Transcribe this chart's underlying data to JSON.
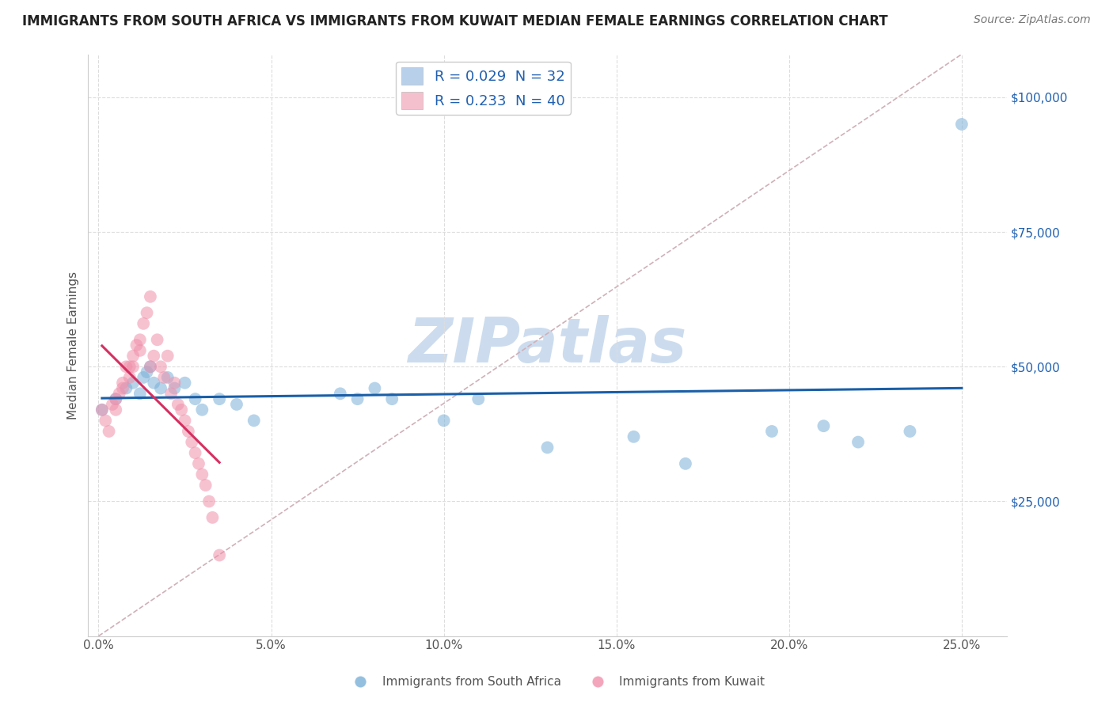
{
  "title": "IMMIGRANTS FROM SOUTH AFRICA VS IMMIGRANTS FROM KUWAIT MEDIAN FEMALE EARNINGS CORRELATION CHART",
  "source": "Source: ZipAtlas.com",
  "ylabel": "Median Female Earnings",
  "xlabel_ticks": [
    "0.0%",
    "5.0%",
    "10.0%",
    "15.0%",
    "20.0%",
    "25.0%"
  ],
  "xlabel_vals": [
    0.0,
    0.05,
    0.1,
    0.15,
    0.2,
    0.25
  ],
  "ylabel_ticks": [
    "$25,000",
    "$50,000",
    "$75,000",
    "$100,000"
  ],
  "ylabel_vals": [
    25000,
    50000,
    75000,
    100000
  ],
  "xlim": [
    -0.003,
    0.263
  ],
  "ylim": [
    0,
    108000
  ],
  "legend_blue_label": "R = 0.029  N = 32",
  "legend_pink_label": "R = 0.233  N = 40",
  "legend_blue_color": "#b8d0ea",
  "legend_pink_color": "#f5c0ce",
  "scatter_blue_color": "#7ab0d8",
  "scatter_pink_color": "#f090aa",
  "trendline_blue_color": "#1a5fa8",
  "trendline_pink_color": "#d43060",
  "trendline_dash_color": "#d0b0b8",
  "watermark_color": "#ccdcee",
  "background_color": "#ffffff",
  "grid_color": "#dddddd",
  "title_fontsize": 12,
  "axis_label_fontsize": 11,
  "tick_fontsize": 11,
  "source_fontsize": 10,
  "blue_x": [
    0.001,
    0.005,
    0.008,
    0.01,
    0.012,
    0.013,
    0.014,
    0.015,
    0.016,
    0.018,
    0.02,
    0.022,
    0.025,
    0.028,
    0.03,
    0.035,
    0.04,
    0.045,
    0.07,
    0.075,
    0.08,
    0.085,
    0.1,
    0.11,
    0.13,
    0.155,
    0.17,
    0.195,
    0.21,
    0.22,
    0.235,
    0.25
  ],
  "blue_y": [
    42000,
    44000,
    46000,
    47000,
    45000,
    48000,
    49000,
    50000,
    47000,
    46000,
    48000,
    46000,
    47000,
    44000,
    42000,
    44000,
    43000,
    40000,
    45000,
    44000,
    46000,
    44000,
    40000,
    44000,
    35000,
    37000,
    32000,
    38000,
    39000,
    36000,
    38000,
    95000
  ],
  "pink_x": [
    0.001,
    0.002,
    0.003,
    0.004,
    0.005,
    0.005,
    0.006,
    0.007,
    0.007,
    0.008,
    0.009,
    0.009,
    0.01,
    0.01,
    0.011,
    0.012,
    0.012,
    0.013,
    0.014,
    0.015,
    0.015,
    0.016,
    0.017,
    0.018,
    0.019,
    0.02,
    0.021,
    0.022,
    0.023,
    0.024,
    0.025,
    0.026,
    0.027,
    0.028,
    0.029,
    0.03,
    0.031,
    0.032,
    0.033,
    0.035
  ],
  "pink_y": [
    42000,
    40000,
    38000,
    43000,
    44000,
    42000,
    45000,
    47000,
    46000,
    50000,
    48000,
    50000,
    52000,
    50000,
    54000,
    55000,
    53000,
    58000,
    60000,
    63000,
    50000,
    52000,
    55000,
    50000,
    48000,
    52000,
    45000,
    47000,
    43000,
    42000,
    40000,
    38000,
    36000,
    34000,
    32000,
    30000,
    28000,
    25000,
    22000,
    15000
  ]
}
